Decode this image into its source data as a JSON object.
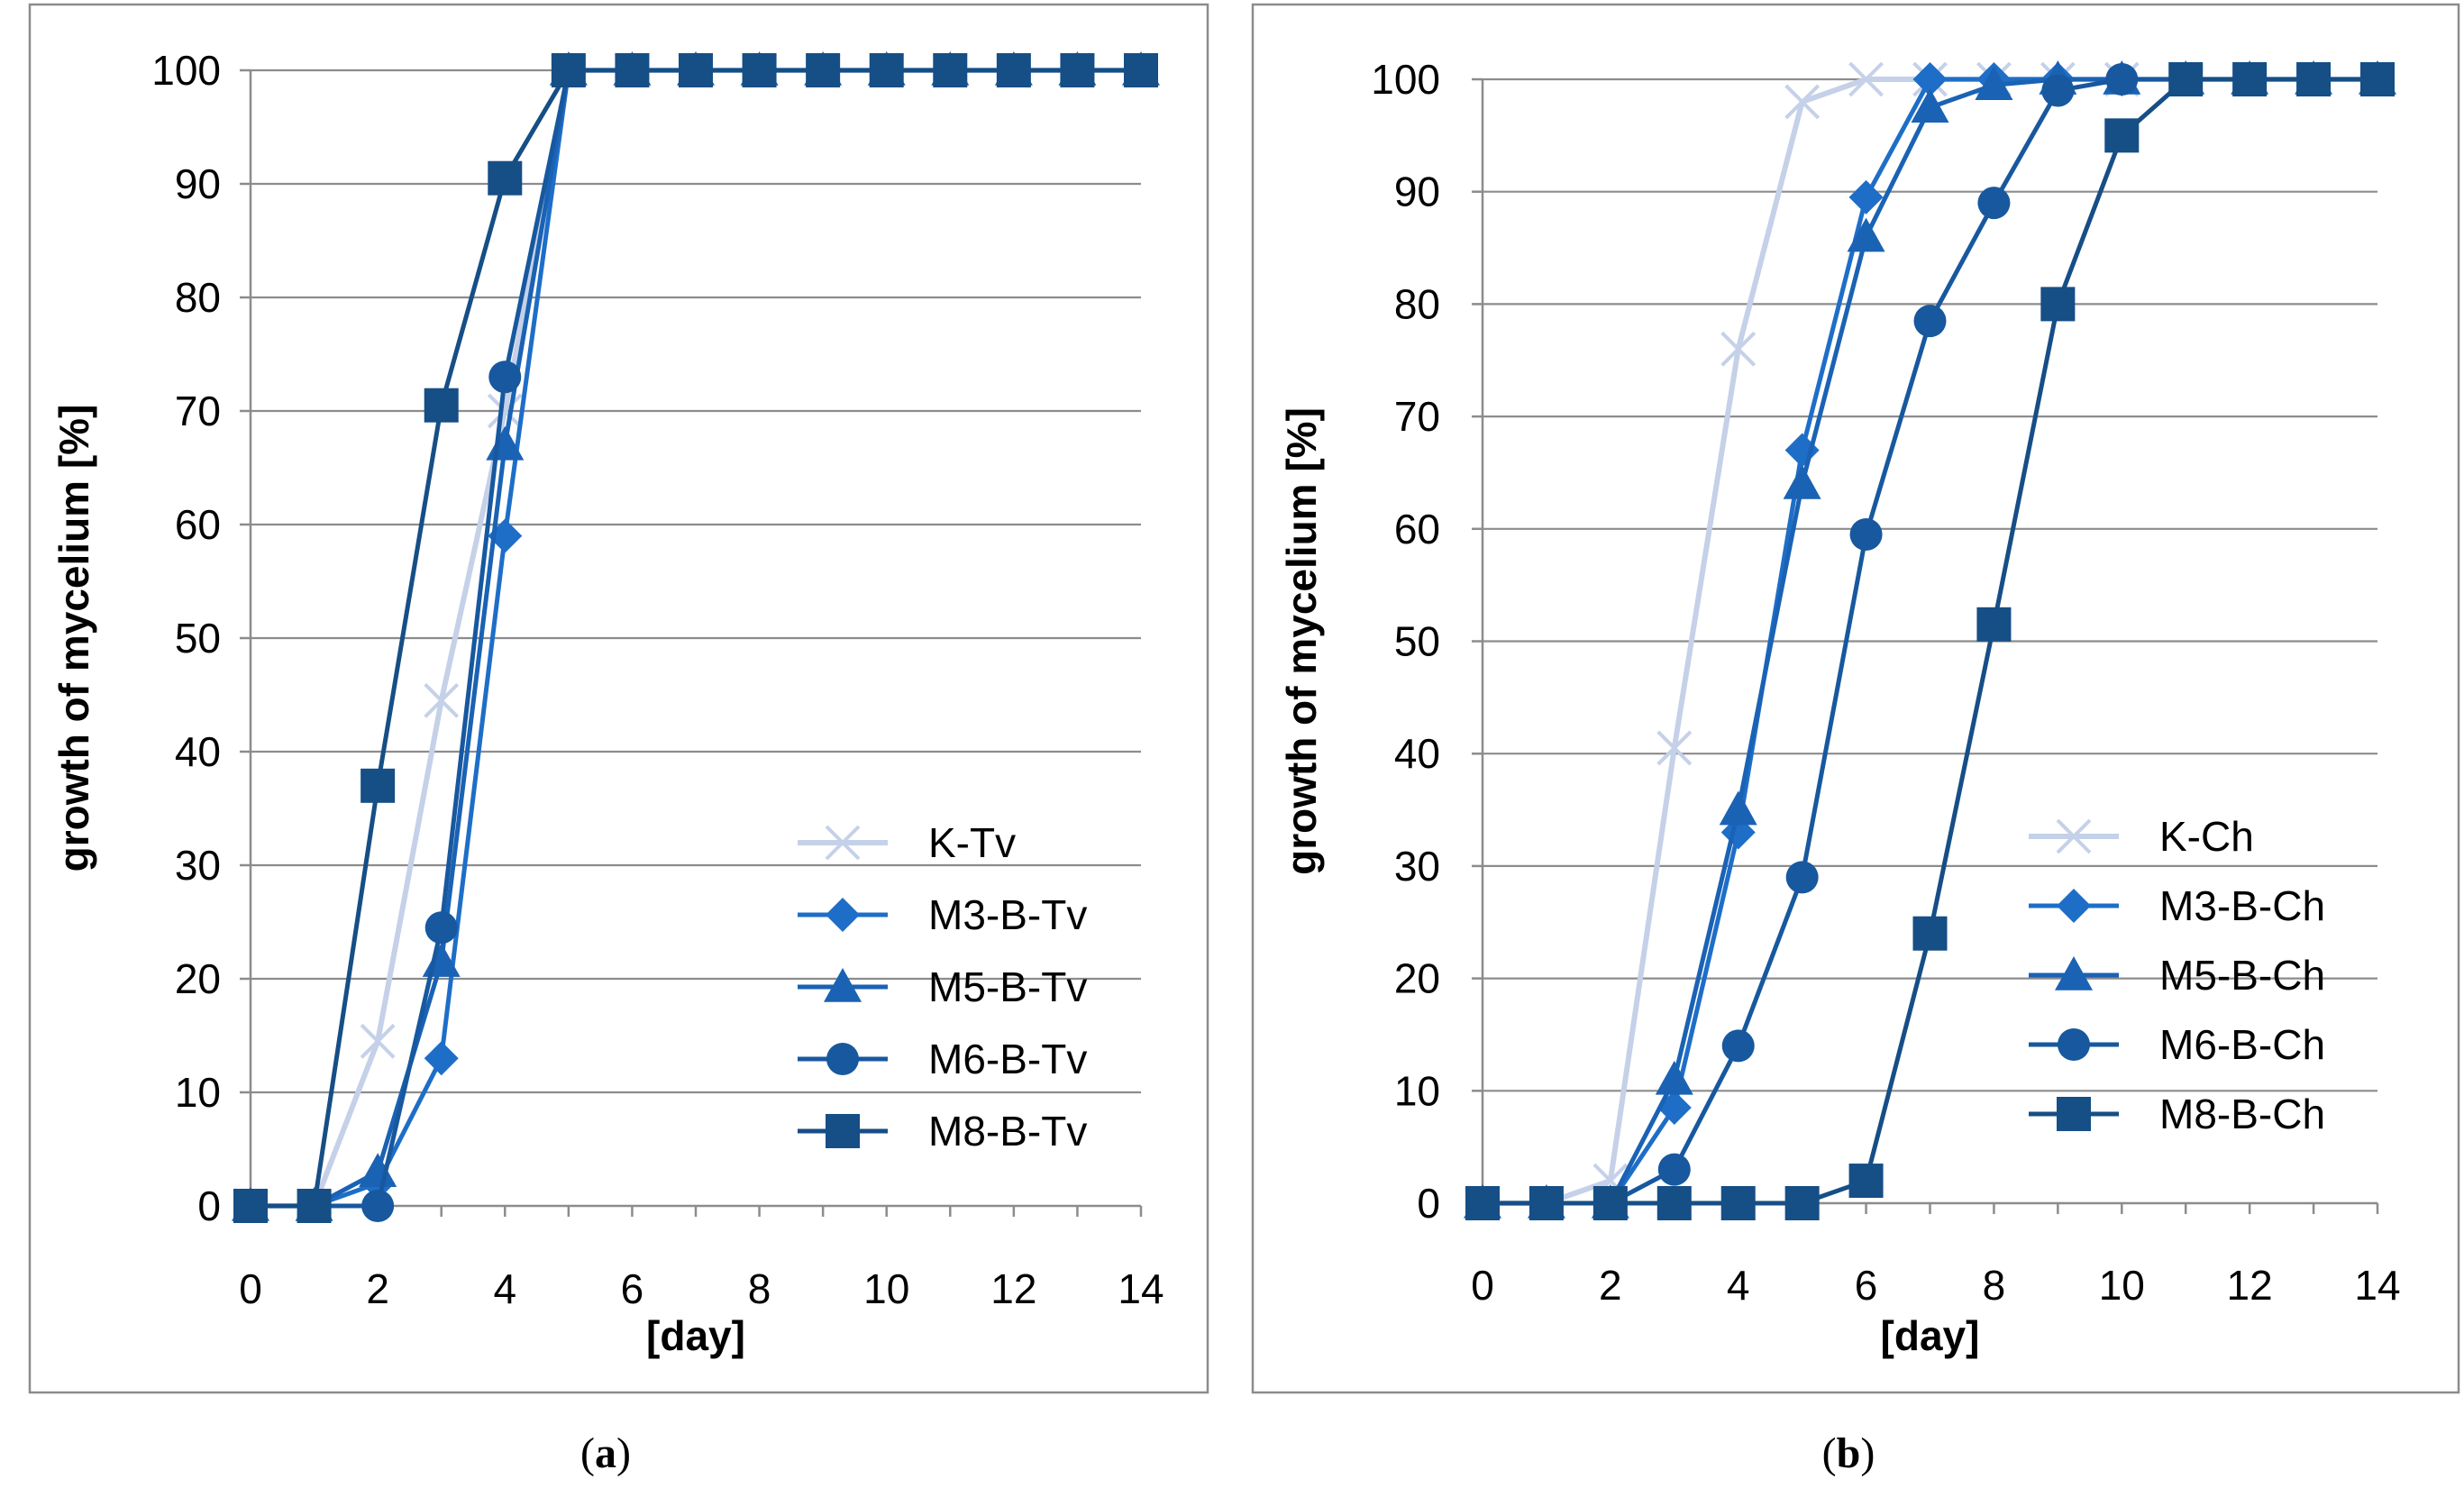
{
  "chart_data": [
    {
      "type": "line",
      "panel_label": "a",
      "xlabel": "[day]",
      "ylabel": "growth of mycelium [%]",
      "xlim": [
        0,
        14
      ],
      "ylim": [
        0,
        100
      ],
      "x_ticks": [
        "0",
        "2",
        "4",
        "6",
        "8",
        "10",
        "12",
        "14"
      ],
      "y_ticks": [
        "0",
        "10",
        "20",
        "30",
        "40",
        "50",
        "60",
        "70",
        "80",
        "90",
        "100"
      ],
      "x": [
        0,
        1,
        2,
        3,
        4,
        5,
        6,
        7,
        8,
        9,
        10,
        11,
        12,
        13,
        14
      ],
      "legend_position": "bottom-right",
      "grid": true,
      "series": [
        {
          "name": "K-Tv",
          "marker": "x",
          "color": "#c5d1e8",
          "values": [
            0,
            0,
            14.5,
            44.5,
            70,
            100,
            100,
            100,
            100,
            100,
            100,
            100,
            100,
            100,
            100
          ]
        },
        {
          "name": "M3-B-Tv",
          "marker": "diamond",
          "color": "#1e6ec8",
          "values": [
            0,
            0,
            2,
            13,
            59,
            100,
            100,
            100,
            100,
            100,
            100,
            100,
            100,
            100,
            100
          ]
        },
        {
          "name": "M5-B-Tv",
          "marker": "triangle",
          "color": "#1a62b4",
          "values": [
            0,
            0,
            3,
            21.5,
            67,
            100,
            100,
            100,
            100,
            100,
            100,
            100,
            100,
            100,
            100
          ]
        },
        {
          "name": "M6-B-Tv",
          "marker": "circle",
          "color": "#17589f",
          "values": [
            0,
            0,
            0,
            24.5,
            73,
            100,
            100,
            100,
            100,
            100,
            100,
            100,
            100,
            100,
            100
          ]
        },
        {
          "name": "M8-B-Tv",
          "marker": "square",
          "color": "#164e86",
          "values": [
            0,
            0,
            37,
            70.5,
            90.5,
            100,
            100,
            100,
            100,
            100,
            100,
            100,
            100,
            100,
            100
          ]
        }
      ]
    },
    {
      "type": "line",
      "panel_label": "b",
      "xlabel": "[day]",
      "ylabel": "growth of mycelium [%]",
      "xlim": [
        0,
        14
      ],
      "ylim": [
        0,
        100
      ],
      "x_ticks": [
        "0",
        "2",
        "4",
        "6",
        "8",
        "10",
        "12",
        "14"
      ],
      "y_ticks": [
        "0",
        "10",
        "20",
        "30",
        "40",
        "50",
        "60",
        "70",
        "80",
        "90",
        "100"
      ],
      "x": [
        0,
        1,
        2,
        3,
        4,
        5,
        6,
        7,
        8,
        9,
        10,
        11,
        12,
        13,
        14
      ],
      "legend_position": "bottom-right",
      "grid": true,
      "series": [
        {
          "name": "K-Ch",
          "marker": "x",
          "color": "#c5d1e8",
          "values": [
            0,
            0,
            2,
            40.5,
            76,
            98,
            100,
            100,
            100,
            100,
            100,
            100,
            100,
            100,
            100
          ]
        },
        {
          "name": "M3-B-Ch",
          "marker": "diamond",
          "color": "#1e6ec8",
          "values": [
            0,
            0,
            0,
            8.5,
            33,
            67,
            89.5,
            100,
            100,
            100,
            100,
            100,
            100,
            100,
            100
          ]
        },
        {
          "name": "M5-B-Ch",
          "marker": "triangle",
          "color": "#1a62b4",
          "values": [
            0,
            0,
            0,
            11,
            35,
            64,
            86,
            97.5,
            99.5,
            100,
            100,
            100,
            100,
            100,
            100
          ]
        },
        {
          "name": "M6-B-Ch",
          "marker": "circle",
          "color": "#17589f",
          "values": [
            0,
            0,
            0,
            3,
            14,
            29,
            59.5,
            78.5,
            89,
            99,
            100,
            100,
            100,
            100,
            100
          ]
        },
        {
          "name": "M8-B-Ch",
          "marker": "square",
          "color": "#164e86",
          "values": [
            0,
            0,
            0,
            0,
            0,
            0,
            2,
            24,
            51.5,
            80,
            95,
            100,
            100,
            100,
            100
          ]
        }
      ]
    }
  ],
  "captions": {
    "a": {
      "open": "(",
      "letter": "a",
      "close": ")"
    },
    "b": {
      "open": "(",
      "letter": "b",
      "close": ")"
    }
  }
}
